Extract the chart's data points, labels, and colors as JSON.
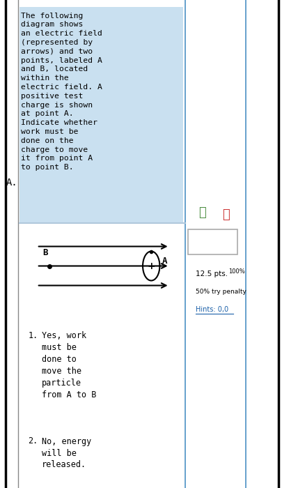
{
  "bg_color": "#ffffff",
  "left_panel_bg": "#c9e0f0",
  "question_label": "A.",
  "question_text": "The following\ndiagram shows\nan electric field\n(represented by\narrows) and two\npoints, labeled A\nand B, located\nwithin the\nelectric field. A\npositive test\ncharge is shown\nat point A.\nIndicate whether\nwork must be\ndone on the\ncharge to move\nit from point A\nto point B.",
  "pts_text": "12.5 pts.",
  "pct_text": "100%",
  "penalty_text": "50% try penalty",
  "hints_text": "Hints: 0,0",
  "choice1": "Yes, work\nmust be\ndone to\nmove the\nparticle\nfrom A to B",
  "choice2": "No, energy\nwill be\nreleased.",
  "left_border_color": "#4a90c4",
  "separator_color": "#b0c8dc",
  "thumbs_up_color": "#4a8c3f",
  "thumbs_down_color": "#cc3333",
  "hints_color": "#1a5fa8"
}
